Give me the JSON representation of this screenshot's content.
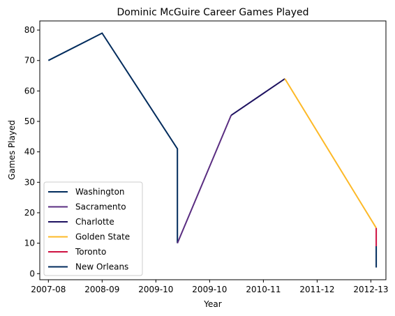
{
  "chart_data": {
    "type": "line",
    "title": "Dominic McGuire Career Games Played",
    "xlabel": "Year",
    "ylabel": "Games Played",
    "x_ticks": [
      "2007-08",
      "2008-09",
      "2009-10",
      "2009-10",
      "2010-11",
      "2011-12",
      "2012-13"
    ],
    "x_tick_positions": [
      0,
      1,
      2,
      3,
      4,
      5,
      6
    ],
    "xlim": [
      -0.16,
      6.28
    ],
    "ylim": [
      -2,
      83
    ],
    "y_ticks": [
      0,
      10,
      20,
      30,
      40,
      50,
      60,
      70,
      80
    ],
    "grid": false,
    "legend_position": "lower-left",
    "series": [
      {
        "name": "Washington",
        "color": "#002B5C",
        "x": [
          0,
          1,
          2.4,
          2.4
        ],
        "y": [
          70,
          79,
          41,
          10
        ]
      },
      {
        "name": "Sacramento",
        "color": "#5A2D81",
        "x": [
          2.4,
          3.4
        ],
        "y": [
          10,
          52
        ]
      },
      {
        "name": "Charlotte",
        "color": "#1D1160",
        "x": [
          3.4,
          4.4
        ],
        "y": [
          52,
          64
        ]
      },
      {
        "name": "Golden State",
        "color": "#FDB927",
        "x": [
          4.4,
          6.1
        ],
        "y": [
          64,
          15
        ]
      },
      {
        "name": "Toronto",
        "color": "#CE1141",
        "x": [
          6.1,
          6.1
        ],
        "y": [
          15,
          9
        ]
      },
      {
        "name": "New Orleans",
        "color": "#002B5C",
        "x": [
          6.1,
          6.1
        ],
        "y": [
          9,
          2
        ]
      }
    ]
  }
}
